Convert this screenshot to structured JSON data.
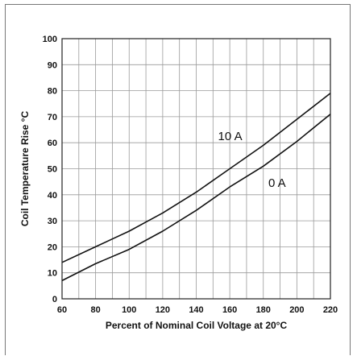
{
  "chart_data": {
    "type": "line",
    "title": "",
    "xlabel": "Percent of Nominal Coil Voltage at 20°C",
    "ylabel": "Coil Temperature Rise °C",
    "xlim": [
      60,
      220
    ],
    "ylim": [
      0,
      100
    ],
    "x_ticks": [
      "60",
      "80",
      "100",
      "120",
      "140",
      "160",
      "180",
      "200",
      "220"
    ],
    "y_ticks": [
      "0",
      "10",
      "20",
      "30",
      "40",
      "50",
      "60",
      "70",
      "80",
      "90",
      "100"
    ],
    "grid": true,
    "series": [
      {
        "name": "10 A",
        "x": [
          60,
          80,
          90,
          100,
          110,
          120,
          140,
          160,
          180,
          200,
          220
        ],
        "y": [
          14,
          20,
          23,
          26,
          29.5,
          33,
          41,
          50,
          59,
          69,
          79
        ]
      },
      {
        "name": "0 A",
        "x": [
          60,
          80,
          100,
          120,
          140,
          160,
          180,
          200,
          220
        ],
        "y": [
          7,
          13.5,
          19,
          26,
          34,
          43,
          51,
          60.5,
          71
        ]
      }
    ],
    "series_color": "#111111",
    "grid_color": "#9a9a9a"
  }
}
